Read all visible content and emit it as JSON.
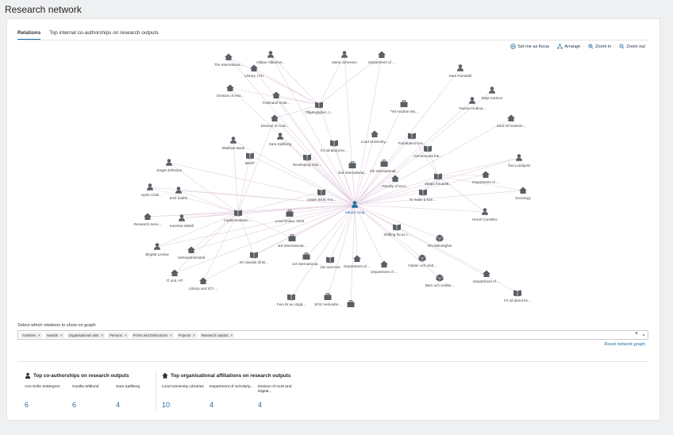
{
  "page": {
    "title": "Research network"
  },
  "tabs": [
    {
      "label": "Relations",
      "active": true
    },
    {
      "label": "Top internal co-authorships on research outputs",
      "active": false
    }
  ],
  "toolbar": {
    "set_focus": "Set me as focus",
    "arrange": "Arrange",
    "zoom_in": "Zoom in",
    "zoom_out": "Zoom out"
  },
  "graph": {
    "focus": {
      "label": "Hanna Voog",
      "color": "#1f6fa5"
    },
    "edge_color": "#e3cfe0",
    "node_color": "#5a5f66",
    "nodes": [
      {
        "label": "Håkan Håkanss...",
        "kind": "person"
      },
      {
        "label": "Maria Johnsson",
        "kind": "person"
      },
      {
        "label": "Department of ...",
        "kind": "org"
      },
      {
        "label": "The Internationa...",
        "kind": "org"
      },
      {
        "label": "Library, LTH",
        "kind": "org"
      },
      {
        "label": "Division of Hist...",
        "kind": "org"
      },
      {
        "label": "Pufendorf Instit...",
        "kind": "org"
      },
      {
        "label": "Tillgänglighet, n...",
        "kind": "output"
      },
      {
        "label": "Sara Rumdahl",
        "kind": "person"
      },
      {
        "label": "Maja Carlson",
        "kind": "person"
      },
      {
        "label": "Yvonne Hultma...",
        "kind": "person"
      },
      {
        "label": "\"Yet Another Mo...",
        "kind": "project"
      },
      {
        "label": "Södz till forsknin...",
        "kind": "org"
      },
      {
        "label": "Division of ALM...",
        "kind": "org"
      },
      {
        "label": "Sara Kjellberg",
        "kind": "person"
      },
      {
        "label": "Lund University...",
        "kind": "org"
      },
      {
        "label": "Framtidens fors...",
        "kind": "output"
      },
      {
        "label": "It's all about ke...",
        "kind": "output"
      },
      {
        "label": "Matthias Bank",
        "kind": "person"
      },
      {
        "label": "MediT",
        "kind": "output"
      },
      {
        "label": "Developing rese...",
        "kind": "output"
      },
      {
        "label": "Gemensamt fok...",
        "kind": "output"
      },
      {
        "label": "Jörgen Eriksson",
        "kind": "person"
      },
      {
        "label": "2nd Internationa...",
        "kind": "project"
      },
      {
        "label": "4th International...",
        "kind": "project"
      },
      {
        "label": "Åsa Lundqvist",
        "kind": "person"
      },
      {
        "label": "Department of ...",
        "kind": "org"
      },
      {
        "label": "Skapa förutsätt...",
        "kind": "output"
      },
      {
        "label": "Faculty of Soci...",
        "kind": "org"
      },
      {
        "label": "Sociology",
        "kind": "org"
      },
      {
        "label": "Aprile Clark",
        "kind": "person"
      },
      {
        "label": "Emil Svahn",
        "kind": "person"
      },
      {
        "label": "Under BIVIL-ins...",
        "kind": "output"
      },
      {
        "label": "To make a kick ...",
        "kind": "output"
      },
      {
        "label": "Hervé Corvellec",
        "kind": "person"
      },
      {
        "label": "Research Servi...",
        "kind": "org"
      },
      {
        "label": "Karolina Widell",
        "kind": "person"
      },
      {
        "label": "Implementation ...",
        "kind": "output"
      },
      {
        "label": "Lund Online, 2019",
        "kind": "project"
      },
      {
        "label": "Shifting focus t...",
        "kind": "output"
      },
      {
        "label": "Birgitta Lexlow",
        "kind": "person"
      },
      {
        "label": "Verksamhetsstöd",
        "kind": "org"
      },
      {
        "label": "3rd International...",
        "kind": "project"
      },
      {
        "label": "Om lättrottighet",
        "kind": "award"
      },
      {
        "label": "En vändok till Bi...",
        "kind": "output"
      },
      {
        "label": "1st International...",
        "kind": "project"
      },
      {
        "label": "Gäster och små...",
        "kind": "award"
      },
      {
        "label": "IT unit, HT",
        "kind": "org"
      },
      {
        "label": "Department of ...",
        "kind": "org"
      },
      {
        "label": "1ke sea leva",
        "kind": "output"
      },
      {
        "label": "Department of ...",
        "kind": "org"
      },
      {
        "label": "Library and ICT-...",
        "kind": "org"
      },
      {
        "label": "Barn och småka...",
        "kind": "award"
      },
      {
        "label": "Department of ...",
        "kind": "org"
      },
      {
        "label": "It's all about ke...",
        "kind": "output"
      },
      {
        "label": "Fem år av Högå...",
        "kind": "output"
      },
      {
        "label": "SFIS Verkonfer...",
        "kind": "project"
      },
      {
        "label": "",
        "kind": "project"
      }
    ]
  },
  "filters": {
    "label": "Select which relations to show on graph",
    "chips": [
      "Activities",
      "Awards",
      "Organisational units",
      "Persons",
      "Prizes and Distinctions",
      "Projects",
      "Research outputs"
    ],
    "remove_glyph": "×",
    "clear_glyph": "×",
    "dropdown_glyph": "⌄",
    "reset_label": "Reset network graph"
  },
  "coauthors": {
    "title": "Top co-authorships on research outputs",
    "items": [
      {
        "name": "Ann-Sofie Zettergren",
        "count": "6"
      },
      {
        "name": "Gunilla Wiklund",
        "count": "6"
      },
      {
        "name": "Sara Kjellberg",
        "count": "4"
      }
    ]
  },
  "affiliations": {
    "title": "Top organisational affiliations on research outputs",
    "items": [
      {
        "name": "Lund University Libraries",
        "count": "10"
      },
      {
        "name": "Department of Scholarly...",
        "count": "4"
      },
      {
        "name": "Division of ALM and Digital...",
        "count": "4"
      }
    ]
  }
}
